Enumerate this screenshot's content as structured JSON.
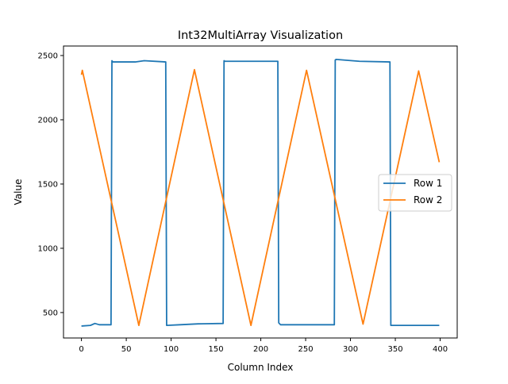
{
  "chart_data": {
    "type": "line",
    "title": "Int32MultiArray Visualization",
    "xlabel": "Column Index",
    "ylabel": "Value",
    "xlim": [
      -20,
      419
    ],
    "ylim": [
      302,
      2574
    ],
    "xticks": [
      0,
      50,
      100,
      150,
      200,
      250,
      300,
      350,
      400
    ],
    "yticks": [
      500,
      1000,
      1500,
      2000,
      2500
    ],
    "grid": false,
    "legend_position": "center-right",
    "series": [
      {
        "name": "Row 1",
        "color": "#1f77b4",
        "points": [
          [
            0,
            395
          ],
          [
            10,
            400
          ],
          [
            15,
            415
          ],
          [
            20,
            405
          ],
          [
            33,
            405
          ],
          [
            34,
            2460
          ],
          [
            35,
            2450
          ],
          [
            60,
            2450
          ],
          [
            70,
            2460
          ],
          [
            94,
            2450
          ],
          [
            95,
            400
          ],
          [
            110,
            405
          ],
          [
            130,
            412
          ],
          [
            158,
            415
          ],
          [
            159,
            2460
          ],
          [
            160,
            2455
          ],
          [
            219,
            2455
          ],
          [
            220,
            420
          ],
          [
            222,
            405
          ],
          [
            282,
            405
          ],
          [
            283,
            2465
          ],
          [
            284,
            2470
          ],
          [
            310,
            2455
          ],
          [
            344,
            2450
          ],
          [
            345,
            400
          ],
          [
            399,
            400
          ]
        ]
      },
      {
        "name": "Row 2",
        "color": "#ff7f0e",
        "points": [
          [
            0,
            2350
          ],
          [
            1,
            2385
          ],
          [
            64,
            400
          ],
          [
            126,
            2390
          ],
          [
            189,
            400
          ],
          [
            251,
            2385
          ],
          [
            314,
            410
          ],
          [
            376,
            2380
          ],
          [
            399,
            1670
          ]
        ]
      }
    ]
  }
}
